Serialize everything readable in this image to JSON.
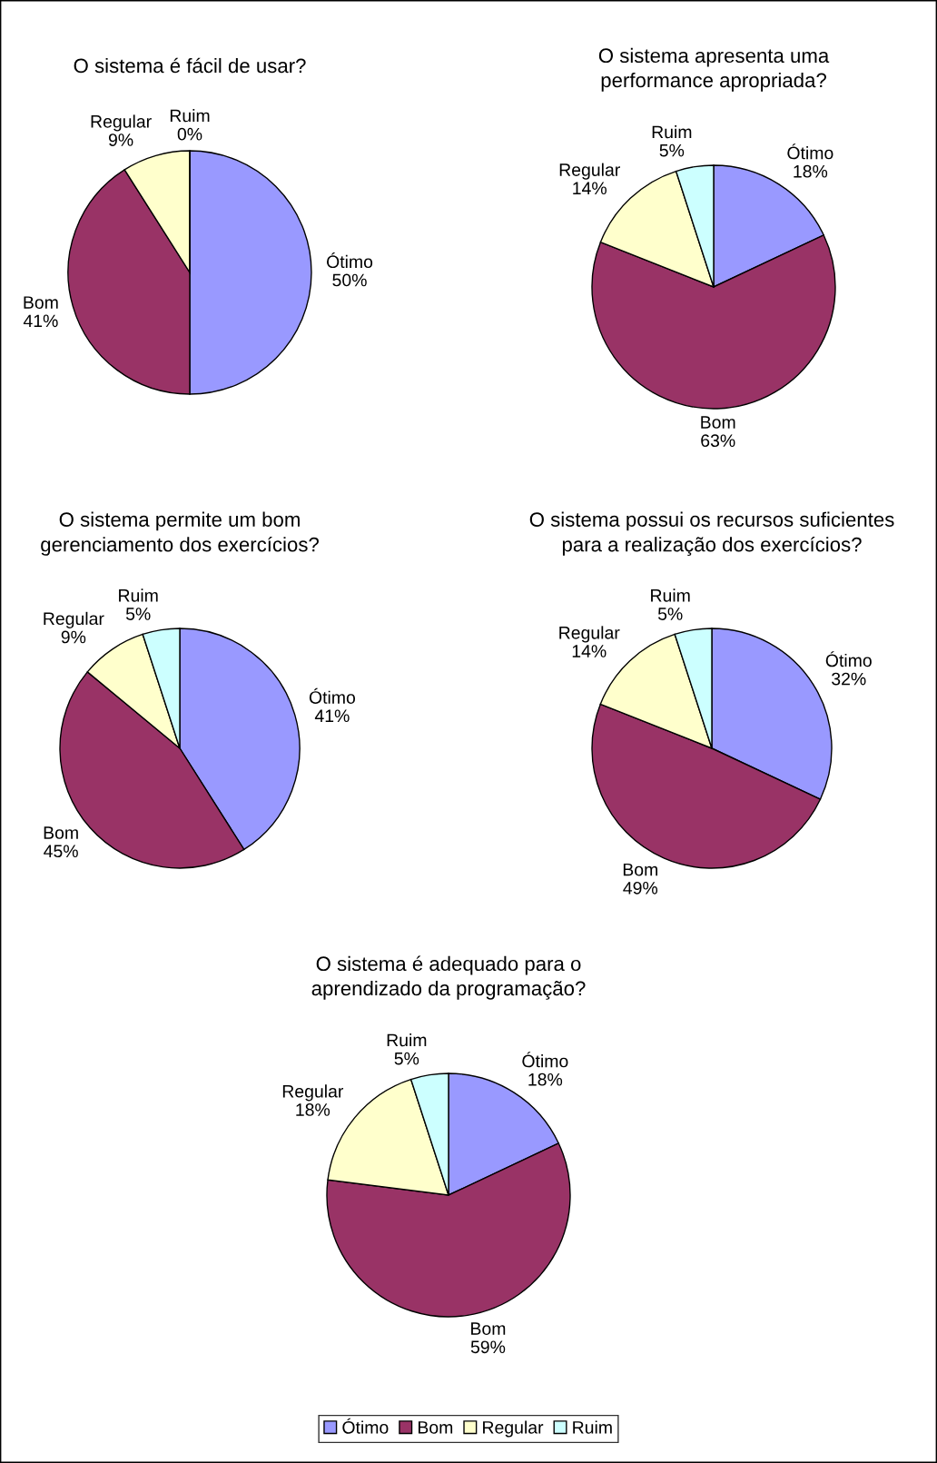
{
  "chart_data": [
    {
      "type": "pie",
      "title": "O sistema é fácil de usar?",
      "categories": [
        "Ótimo",
        "Bom",
        "Regular",
        "Ruim"
      ],
      "values": [
        50,
        41,
        9,
        0
      ],
      "value_labels": [
        "50%",
        "41%",
        "9%",
        "0%"
      ],
      "colors": [
        "#9999ff",
        "#993366",
        "#ffffcc",
        "#ccffff"
      ]
    },
    {
      "type": "pie",
      "title": "O sistema apresenta uma\nperformance apropriada?",
      "categories": [
        "Ótimo",
        "Bom",
        "Regular",
        "Ruim"
      ],
      "values": [
        18,
        63,
        14,
        5
      ],
      "value_labels": [
        "18%",
        "63%",
        "14%",
        "5%"
      ],
      "colors": [
        "#9999ff",
        "#993366",
        "#ffffcc",
        "#ccffff"
      ]
    },
    {
      "type": "pie",
      "title": "O sistema permite um bom\ngerenciamento dos exercícios?",
      "categories": [
        "Ótimo",
        "Bom",
        "Regular",
        "Ruim"
      ],
      "values": [
        41,
        45,
        9,
        5
      ],
      "value_labels": [
        "41%",
        "45%",
        "9%",
        "5%"
      ],
      "colors": [
        "#9999ff",
        "#993366",
        "#ffffcc",
        "#ccffff"
      ]
    },
    {
      "type": "pie",
      "title": "O sistema possui os recursos suficientes\npara a realização dos exercícios?",
      "categories": [
        "Ótimo",
        "Bom",
        "Regular",
        "Ruim"
      ],
      "values": [
        32,
        49,
        14,
        5
      ],
      "value_labels": [
        "32%",
        "49%",
        "14%",
        "5%"
      ],
      "colors": [
        "#9999ff",
        "#993366",
        "#ffffcc",
        "#ccffff"
      ]
    },
    {
      "type": "pie",
      "title": "O sistema é adequado para o\naprendizado da programação?",
      "categories": [
        "Ótimo",
        "Bom",
        "Regular",
        "Ruim"
      ],
      "values": [
        18,
        59,
        18,
        5
      ],
      "value_labels": [
        "18%",
        "59%",
        "18%",
        "5%"
      ],
      "colors": [
        "#9999ff",
        "#993366",
        "#ffffcc",
        "#ccffff"
      ],
      "legend": "bottom"
    }
  ]
}
